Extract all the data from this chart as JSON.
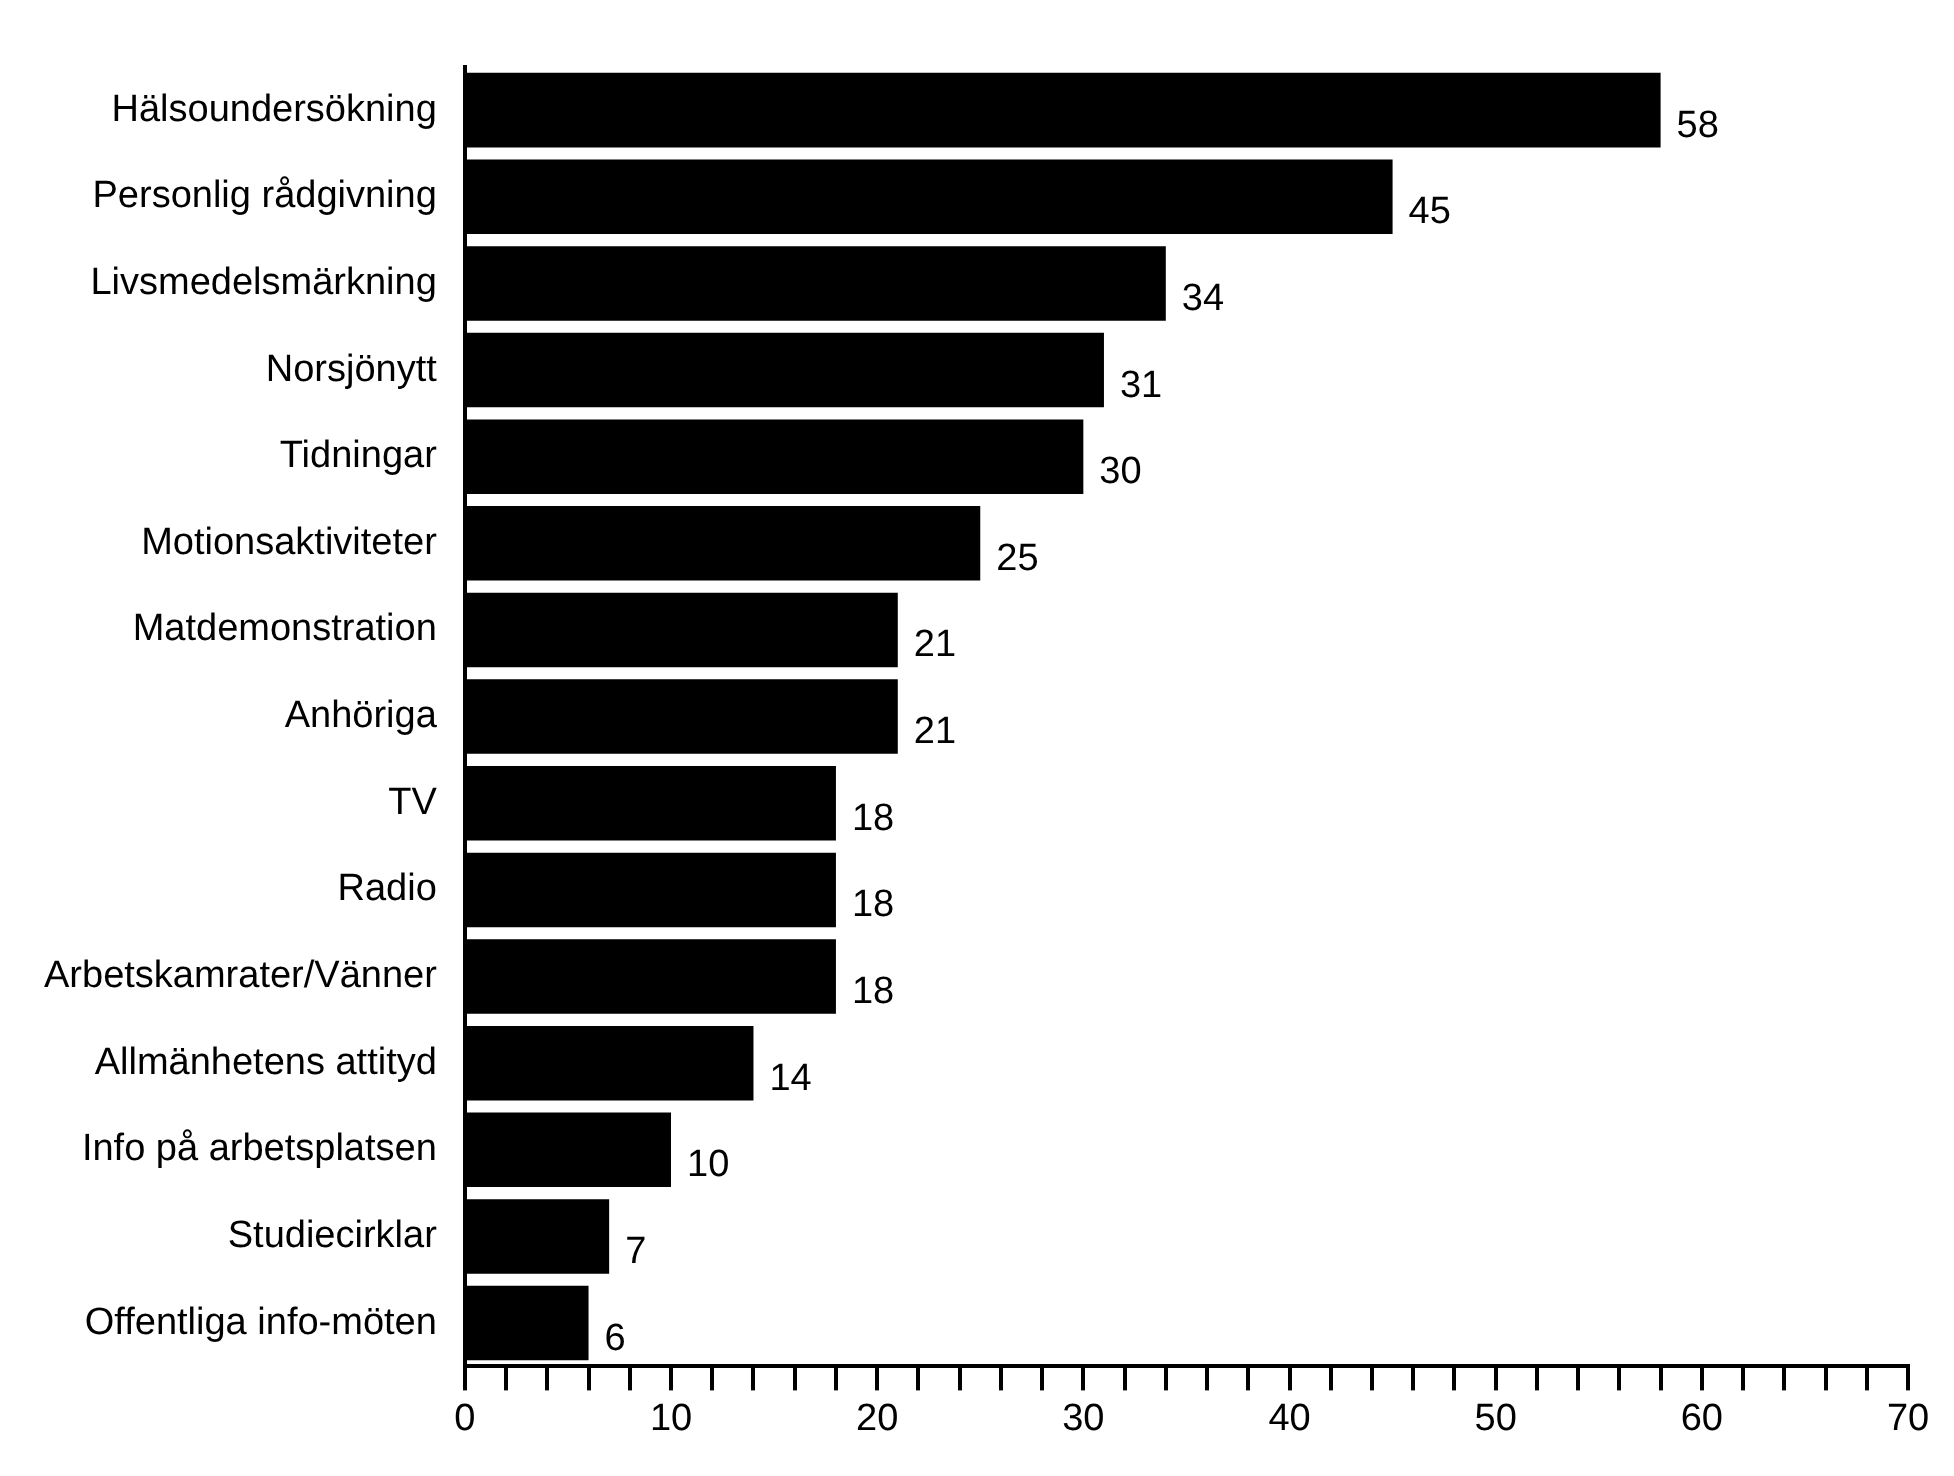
{
  "chart_data": {
    "type": "bar",
    "orientation": "horizontal",
    "categories": [
      "Hälsoundersökning",
      "Personlig rådgivning",
      "Livsmedelsmärkning",
      "Norsjönytt",
      "Tidningar",
      "Motionsaktiviteter",
      "Matdemonstration",
      "Anhöriga",
      "TV",
      "Radio",
      "Arbetskamrater/Vänner",
      "Allmänhetens attityd",
      "Info på arbetsplatsen",
      "Studiecirklar",
      "Offentliga info-möten"
    ],
    "values": [
      58,
      45,
      34,
      31,
      30,
      25,
      21,
      21,
      18,
      18,
      18,
      14,
      10,
      7,
      6
    ],
    "color": "#000000",
    "xlim": [
      0,
      70
    ],
    "xticks": [
      0,
      {
        "value": 2,
        "label": null
      },
      {
        "value": 4,
        "label": null
      },
      {
        "value": 6,
        "label": null
      },
      {
        "value": 8,
        "label": null
      },
      10,
      {
        "value": 12,
        "label": null
      },
      {
        "value": 14,
        "label": null
      },
      {
        "value": 16,
        "label": null
      },
      {
        "value": 18,
        "label": null
      },
      20,
      {
        "value": 22,
        "label": null
      },
      {
        "value": 24,
        "label": null
      },
      {
        "value": 26,
        "label": null
      },
      {
        "value": 28,
        "label": null
      },
      30,
      {
        "value": 32,
        "label": null
      },
      {
        "value": 34,
        "label": null
      },
      {
        "value": 36,
        "label": null
      },
      {
        "value": 38,
        "label": null
      },
      40,
      {
        "value": 42,
        "label": null
      },
      {
        "value": 44,
        "label": null
      },
      {
        "value": 46,
        "label": null
      },
      {
        "value": 48,
        "label": null
      },
      50,
      {
        "value": 52,
        "label": null
      },
      {
        "value": 54,
        "label": null
      },
      {
        "value": 56,
        "label": null
      },
      {
        "value": 58,
        "label": null
      },
      60,
      {
        "value": 62,
        "label": null
      },
      {
        "value": 64,
        "label": null
      },
      {
        "value": 66,
        "label": null
      },
      {
        "value": 68,
        "label": null
      },
      70
    ],
    "data_labels": true,
    "grid": false,
    "legend": false
  }
}
